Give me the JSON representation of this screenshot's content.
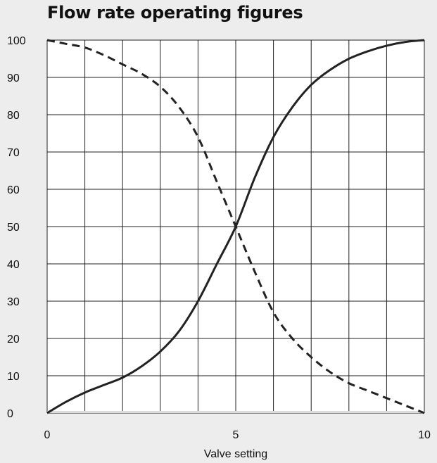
{
  "chart_data": {
    "type": "line",
    "title": "Flow rate operating figures",
    "xlabel": "Valve setting",
    "ylabel": "",
    "xlim": [
      0,
      10
    ],
    "ylim": [
      0,
      100
    ],
    "x_ticks": [
      0,
      5,
      10
    ],
    "y_ticks": [
      0,
      10,
      20,
      30,
      40,
      50,
      60,
      70,
      80,
      90,
      100
    ],
    "grid": true,
    "legend": "none",
    "colors": {
      "plot_background": "#ffffff",
      "page_background": "#ededed",
      "grid": "#222222",
      "line": "#222222"
    },
    "series": [
      {
        "style": "solid",
        "x": [
          0,
          0.5,
          1,
          1.5,
          2,
          2.5,
          3,
          3.5,
          4,
          4.5,
          5,
          5.5,
          6,
          6.5,
          7,
          7.5,
          8,
          8.5,
          9,
          9.5,
          10
        ],
        "y": [
          0,
          3,
          5.5,
          7.5,
          9.5,
          12.5,
          16.5,
          22,
          30,
          40,
          50,
          63,
          74,
          82,
          88,
          92,
          95,
          97,
          98.5,
          99.5,
          100
        ]
      },
      {
        "style": "dashed",
        "x": [
          0,
          0.5,
          1,
          1.5,
          2,
          2.5,
          3,
          3.5,
          4,
          4.5,
          5,
          5.5,
          6,
          6.5,
          7,
          7.5,
          8,
          8.5,
          9,
          9.5,
          10
        ],
        "y": [
          100,
          99,
          98,
          96,
          93.5,
          91,
          87.5,
          82,
          74,
          62,
          50,
          38,
          27,
          20,
          15,
          11,
          8,
          6,
          4,
          2,
          0
        ]
      }
    ]
  }
}
